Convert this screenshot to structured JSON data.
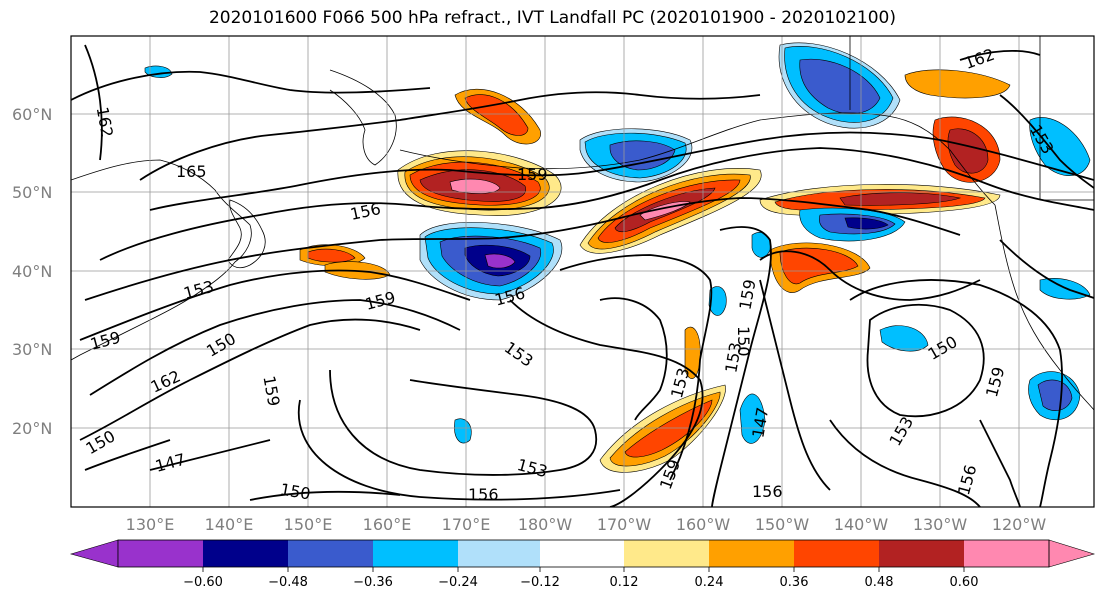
{
  "title": "2020101600 F066 500 hPa refract., IVT Landfall PC (2020101900 - 2020102100)",
  "lat_labels": [
    "60°N",
    "50°N",
    "40°N",
    "30°N",
    "20°N"
  ],
  "lon_labels": [
    "130°E",
    "140°E",
    "150°E",
    "160°E",
    "170°E",
    "180°W",
    "170°W",
    "160°W",
    "150°W",
    "140°W",
    "130°W",
    "120°W"
  ],
  "contour_labels": [
    "162",
    "165",
    "159",
    "156",
    "153",
    "159",
    "156",
    "153",
    "159",
    "150",
    "162",
    "159",
    "150",
    "147",
    "150",
    "153",
    "156",
    "159",
    "153",
    "153",
    "159",
    "150",
    "147",
    "156",
    "153",
    "150",
    "156",
    "159",
    "153",
    "162"
  ],
  "colorbar": {
    "tick_labels": [
      "−0.60",
      "−0.48",
      "−0.36",
      "−0.24",
      "−0.12",
      "0.12",
      "0.24",
      "0.36",
      "0.48",
      "0.60"
    ],
    "colors": [
      "#9932cc",
      "#00008b",
      "#3a5bcd",
      "#00bfff",
      "#b0e0fa",
      "#ffffff",
      "#ffe98a",
      "#ffa000",
      "#ff4500",
      "#b22222",
      "#ff88b0"
    ]
  },
  "colors": {
    "purple": "#9932cc",
    "navy": "#00008b",
    "blue": "#3a5bcd",
    "sky": "#00bfff",
    "light_blue": "#b0e0fa",
    "yellow": "#ffe98a",
    "orange": "#ffa000",
    "red_orange": "#ff4500",
    "dark_red": "#b22222",
    "pink": "#ff88b0"
  }
}
